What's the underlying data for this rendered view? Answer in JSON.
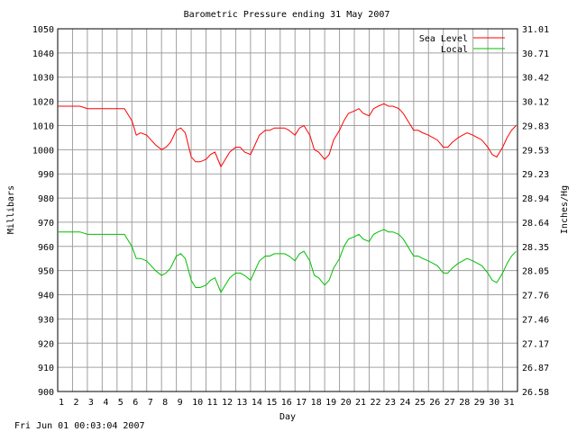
{
  "chart_data": {
    "type": "line",
    "title": "Barometric Pressure ending 31 May 2007",
    "xlabel": "Day",
    "ylabel": "Millibars",
    "y2label": "Inches/Hg",
    "footer": "Fri Jun 01 00:03:04 2007",
    "xlim": [
      1,
      32
    ],
    "ylim": [
      900,
      1050
    ],
    "grid": true,
    "legend_position": "top-right",
    "x_ticks": [
      "1",
      "2",
      "3",
      "4",
      "5",
      "6",
      "7",
      "8",
      "9",
      "10",
      "11",
      "12",
      "13",
      "14",
      "15",
      "16",
      "17",
      "18",
      "19",
      "20",
      "21",
      "22",
      "23",
      "24",
      "25",
      "26",
      "27",
      "28",
      "29",
      "30",
      "31"
    ],
    "y_ticks": [
      1050,
      1040,
      1030,
      1020,
      1010,
      1000,
      990,
      980,
      970,
      960,
      950,
      940,
      930,
      920,
      910,
      900
    ],
    "y2_ticks": [
      "31.01",
      "30.71",
      "30.42",
      "30.12",
      "29.83",
      "29.53",
      "29.23",
      "28.94",
      "28.64",
      "28.35",
      "28.05",
      "27.76",
      "27.46",
      "27.17",
      "26.87",
      "26.58"
    ],
    "series": [
      {
        "name": "Sea Level",
        "color": "#ff0000",
        "x": [
          1.0,
          1.5,
          2.0,
          2.5,
          3.0,
          3.5,
          4.0,
          4.5,
          5.0,
          5.5,
          6.0,
          6.3,
          6.6,
          7.0,
          7.3,
          7.6,
          8.0,
          8.3,
          8.6,
          9.0,
          9.3,
          9.6,
          10.0,
          10.3,
          10.6,
          11.0,
          11.3,
          11.6,
          12.0,
          12.3,
          12.6,
          13.0,
          13.3,
          13.6,
          14.0,
          14.3,
          14.6,
          15.0,
          15.3,
          15.6,
          16.0,
          16.3,
          16.6,
          17.0,
          17.3,
          17.6,
          18.0,
          18.3,
          18.6,
          19.0,
          19.3,
          19.6,
          20.0,
          20.3,
          20.6,
          21.0,
          21.3,
          21.6,
          22.0,
          22.3,
          22.6,
          23.0,
          23.3,
          23.6,
          24.0,
          24.3,
          24.6,
          25.0,
          25.3,
          25.6,
          26.0,
          26.3,
          26.6,
          27.0,
          27.3,
          27.6,
          28.0,
          28.3,
          28.6,
          29.0,
          29.3,
          29.6,
          30.0,
          30.3,
          30.6,
          31.0,
          31.3,
          31.6,
          31.9
        ],
        "values": [
          1018,
          1018,
          1018,
          1018,
          1017,
          1017,
          1017,
          1017,
          1017,
          1017,
          1012,
          1006,
          1007,
          1006,
          1004,
          1002,
          1000,
          1001,
          1003,
          1008,
          1009,
          1007,
          997,
          995,
          995,
          996,
          998,
          999,
          993,
          996,
          999,
          1001,
          1001,
          999,
          998,
          1002,
          1006,
          1008,
          1008,
          1009,
          1009,
          1009,
          1008,
          1006,
          1009,
          1010,
          1006,
          1000,
          999,
          996,
          998,
          1004,
          1008,
          1012,
          1015,
          1016,
          1017,
          1015,
          1014,
          1017,
          1018,
          1019,
          1018,
          1018,
          1017,
          1015,
          1012,
          1008,
          1008,
          1007,
          1006,
          1005,
          1004,
          1001,
          1001,
          1003,
          1005,
          1006,
          1007,
          1006,
          1005,
          1004,
          1001,
          998,
          997,
          1001,
          1005,
          1008,
          1010
        ]
      },
      {
        "name": "Local",
        "color": "#00c000",
        "x": [
          1.0,
          1.5,
          2.0,
          2.5,
          3.0,
          3.5,
          4.0,
          4.5,
          5.0,
          5.5,
          6.0,
          6.3,
          6.6,
          7.0,
          7.3,
          7.6,
          8.0,
          8.3,
          8.6,
          9.0,
          9.3,
          9.6,
          10.0,
          10.3,
          10.6,
          11.0,
          11.3,
          11.6,
          12.0,
          12.3,
          12.6,
          13.0,
          13.3,
          13.6,
          14.0,
          14.3,
          14.6,
          15.0,
          15.3,
          15.6,
          16.0,
          16.3,
          16.6,
          17.0,
          17.3,
          17.6,
          18.0,
          18.3,
          18.6,
          19.0,
          19.3,
          19.6,
          20.0,
          20.3,
          20.6,
          21.0,
          21.3,
          21.6,
          22.0,
          22.3,
          22.6,
          23.0,
          23.3,
          23.6,
          24.0,
          24.3,
          24.6,
          25.0,
          25.3,
          25.6,
          26.0,
          26.3,
          26.6,
          27.0,
          27.3,
          27.6,
          28.0,
          28.3,
          28.6,
          29.0,
          29.3,
          29.6,
          30.0,
          30.3,
          30.6,
          31.0,
          31.3,
          31.6,
          31.9
        ],
        "values": [
          966,
          966,
          966,
          966,
          965,
          965,
          965,
          965,
          965,
          965,
          960,
          955,
          955,
          954,
          952,
          950,
          948,
          949,
          951,
          956,
          957,
          955,
          946,
          943,
          943,
          944,
          946,
          947,
          941,
          944,
          947,
          949,
          949,
          948,
          946,
          950,
          954,
          956,
          956,
          957,
          957,
          957,
          956,
          954,
          957,
          958,
          954,
          948,
          947,
          944,
          946,
          951,
          955,
          960,
          963,
          964,
          965,
          963,
          962,
          965,
          966,
          967,
          966,
          966,
          965,
          963,
          960,
          956,
          956,
          955,
          954,
          953,
          952,
          949,
          949,
          951,
          953,
          954,
          955,
          954,
          953,
          952,
          949,
          946,
          945,
          949,
          953,
          956,
          958
        ]
      }
    ]
  }
}
